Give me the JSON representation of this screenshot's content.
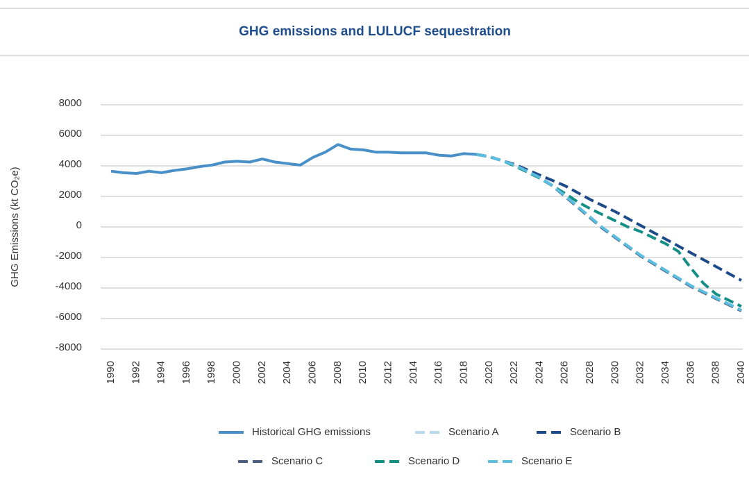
{
  "chart_data": {
    "type": "line",
    "title": "GHG emissions and LULUCF sequestration",
    "y_label": "GHG Emissions (kt CO₂e)",
    "x": [
      1990,
      1991,
      1992,
      1993,
      1994,
      1995,
      1996,
      1997,
      1998,
      1999,
      2000,
      2001,
      2002,
      2003,
      2004,
      2005,
      2006,
      2007,
      2008,
      2009,
      2010,
      2011,
      2012,
      2013,
      2014,
      2015,
      2016,
      2017,
      2018,
      2019,
      2020,
      2021,
      2022,
      2023,
      2024,
      2025,
      2026,
      2027,
      2028,
      2029,
      2030,
      2031,
      2032,
      2033,
      2034,
      2035,
      2036,
      2037,
      2038,
      2039,
      2040
    ],
    "xlim": [
      1990,
      2040
    ],
    "xticks": [
      1990,
      1992,
      1994,
      1996,
      1998,
      2000,
      2002,
      2004,
      2006,
      2008,
      2010,
      2012,
      2014,
      2016,
      2018,
      2020,
      2022,
      2024,
      2026,
      2028,
      2030,
      2032,
      2034,
      2036,
      2038,
      2040
    ],
    "ylim": [
      -8000,
      8000
    ],
    "yticks": [
      -8000,
      -6000,
      -4000,
      -2000,
      0,
      2000,
      4000,
      6000,
      8000
    ],
    "grid": true,
    "series": [
      {
        "name": "Historical GHG emissions",
        "color": "#4a90c8",
        "dashed": false,
        "values": [
          3650,
          3550,
          3500,
          3650,
          3550,
          3700,
          3800,
          3950,
          4050,
          4250,
          4300,
          4250,
          4450,
          4250,
          4150,
          4050,
          4550,
          4900,
          5400,
          5100,
          5050,
          4900,
          4900,
          4850,
          4850,
          4850,
          4700,
          4650,
          4800,
          4750,
          null,
          null,
          null,
          null,
          null,
          null,
          null,
          null,
          null,
          null,
          null,
          null,
          null,
          null,
          null,
          null,
          null,
          null,
          null,
          null,
          null
        ]
      },
      {
        "name": "Scenario A",
        "color": "#b8d8ee",
        "dashed": true,
        "values": [
          null,
          null,
          null,
          null,
          null,
          null,
          null,
          null,
          null,
          null,
          null,
          null,
          null,
          null,
          null,
          null,
          null,
          null,
          null,
          null,
          null,
          null,
          null,
          null,
          null,
          null,
          null,
          null,
          null,
          4750,
          4600,
          4350,
          4050,
          3650,
          3250,
          2750,
          2050,
          1350,
          650,
          -50,
          -650,
          -1250,
          -1850,
          -2350,
          -2850,
          -3350,
          -3850,
          -4250,
          -4650,
          -5050,
          -5450
        ]
      },
      {
        "name": "Scenario B",
        "color": "#1d4b8a",
        "dashed": true,
        "values": [
          null,
          null,
          null,
          null,
          null,
          null,
          null,
          null,
          null,
          null,
          null,
          null,
          null,
          null,
          null,
          null,
          null,
          null,
          null,
          null,
          null,
          null,
          null,
          null,
          null,
          null,
          null,
          null,
          null,
          4750,
          4600,
          4350,
          4100,
          3750,
          3400,
          3050,
          2700,
          2250,
          1800,
          1400,
          1000,
          550,
          100,
          -350,
          -800,
          -1250,
          -1700,
          -2150,
          -2600,
          -3050,
          -3500
        ]
      },
      {
        "name": "Scenario C",
        "color": "#4a5f82",
        "dashed": true,
        "values": [
          null,
          null,
          null,
          null,
          null,
          null,
          null,
          null,
          null,
          null,
          null,
          null,
          null,
          null,
          null,
          null,
          null,
          null,
          null,
          null,
          null,
          null,
          null,
          null,
          null,
          null,
          null,
          null,
          null,
          4750,
          4600,
          4350,
          4050,
          3650,
          3200,
          2700,
          2000,
          1300,
          600,
          -100,
          -700,
          -1300,
          -1900,
          -2400,
          -2900,
          -3400,
          -3900,
          -4300,
          -4700,
          -5100,
          -5500
        ]
      },
      {
        "name": "Scenario D",
        "color": "#158f86",
        "dashed": true,
        "values": [
          null,
          null,
          null,
          null,
          null,
          null,
          null,
          null,
          null,
          null,
          null,
          null,
          null,
          null,
          null,
          null,
          null,
          null,
          null,
          null,
          null,
          null,
          null,
          null,
          null,
          null,
          null,
          null,
          null,
          4750,
          4600,
          4350,
          4000,
          3600,
          3200,
          2700,
          2200,
          1650,
          1200,
          800,
          400,
          0,
          -300,
          -700,
          -1100,
          -1600,
          -2700,
          -3700,
          -4400,
          -4800,
          -5200
        ]
      },
      {
        "name": "Scenario E",
        "color": "#5bbde0",
        "dashed": true,
        "values": [
          null,
          null,
          null,
          null,
          null,
          null,
          null,
          null,
          null,
          null,
          null,
          null,
          null,
          null,
          null,
          null,
          null,
          null,
          null,
          null,
          null,
          null,
          null,
          null,
          null,
          null,
          null,
          null,
          null,
          4750,
          4600,
          4350,
          4050,
          3650,
          3250,
          2700,
          2050,
          1350,
          650,
          -50,
          -650,
          -1250,
          -1850,
          -2350,
          -2850,
          -3350,
          -3850,
          -4250,
          -4650,
          -5050,
          -5450
        ]
      }
    ]
  }
}
